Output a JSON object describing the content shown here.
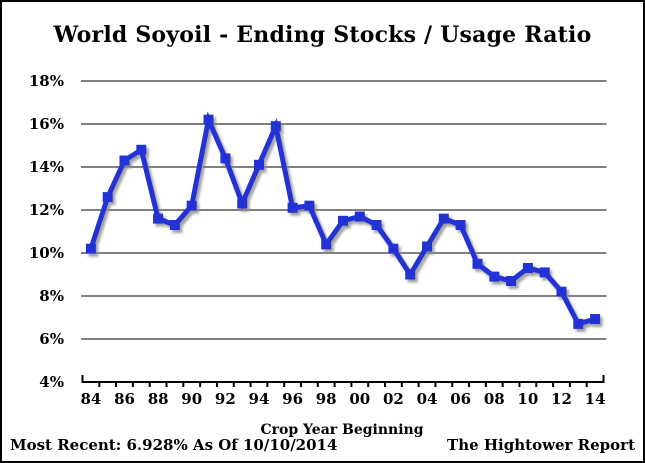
{
  "chart_data": {
    "type": "line",
    "title": "World Soyoil - Ending Stocks / Usage Ratio",
    "xlabel": "Crop Year Beginning",
    "ylabel": "",
    "x": [
      1984,
      1985,
      1986,
      1987,
      1988,
      1989,
      1990,
      1991,
      1992,
      1993,
      1994,
      1995,
      1996,
      1997,
      1998,
      1999,
      2000,
      2001,
      2002,
      2003,
      2004,
      2005,
      2006,
      2007,
      2008,
      2009,
      2010,
      2011,
      2012,
      2013,
      2014
    ],
    "series": [
      {
        "name": "World Soyoil Ending Stocks / Usage Ratio (%)",
        "values": [
          10.2,
          12.6,
          14.3,
          14.8,
          11.6,
          11.3,
          12.2,
          16.2,
          14.4,
          12.3,
          14.1,
          15.9,
          12.1,
          12.2,
          10.4,
          11.5,
          11.7,
          11.3,
          10.2,
          9.0,
          10.3,
          11.6,
          11.3,
          9.5,
          8.9,
          8.7,
          9.3,
          9.1,
          8.2,
          6.7,
          6.928
        ]
      }
    ],
    "x_tick_years": [
      1984,
      1986,
      1988,
      1990,
      1992,
      1994,
      1996,
      1998,
      2000,
      2002,
      2004,
      2006,
      2008,
      2010,
      2012,
      2014
    ],
    "x_tick_labels": [
      "84",
      "86",
      "88",
      "90",
      "92",
      "94",
      "96",
      "98",
      "00",
      "02",
      "04",
      "06",
      "08",
      "10",
      "12",
      "14"
    ],
    "y_ticks": [
      4,
      6,
      8,
      10,
      12,
      14,
      16,
      18
    ],
    "y_tick_labels": [
      "4%",
      "6%",
      "8%",
      "10%",
      "12%",
      "14%",
      "16%",
      "18%"
    ],
    "ylim": [
      4,
      18
    ],
    "grid": "horizontal",
    "legend": "none",
    "marker": "square",
    "most_recent": {
      "value": "6.928%",
      "as_of": "10/10/2014"
    }
  },
  "footer": {
    "left": "Most Recent: 6.928% As Of 10/10/2014",
    "right": "The Hightower Report"
  },
  "colors": {
    "line": "#2231d4",
    "grid": "#000000",
    "axis": "#000000",
    "background": "#ffffff",
    "border": "#000000",
    "text": "#000000",
    "shadow": "#8a8a8a"
  }
}
